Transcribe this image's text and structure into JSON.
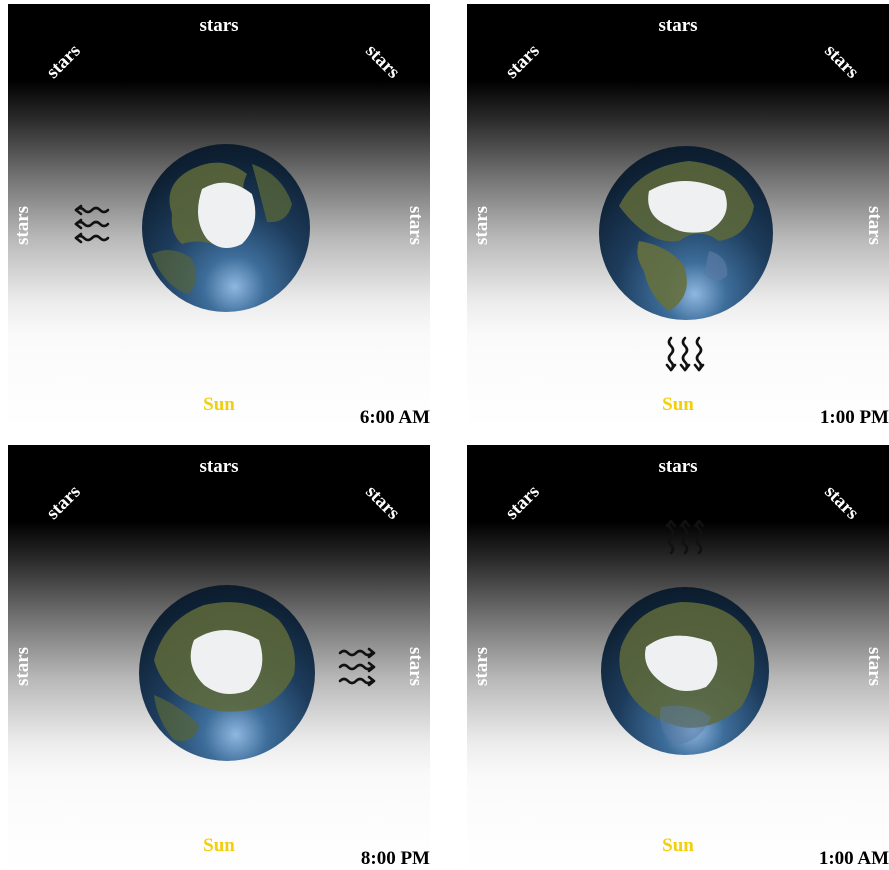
{
  "panels": [
    {
      "time": "6:00 AM",
      "stars": "stars",
      "sun": "Sun",
      "arrow_direction": "up",
      "globe_view": "6am-globe"
    },
    {
      "time": "1:00 PM",
      "stars": "stars",
      "sun": "Sun",
      "arrow_direction": "down",
      "globe_view": "1pm-globe"
    },
    {
      "time": "8:00 PM",
      "stars": "stars",
      "sun": "Sun",
      "arrow_direction": "right",
      "globe_view": "8pm-globe"
    },
    {
      "time": "1:00 AM",
      "stars": "stars",
      "sun": "Sun",
      "arrow_direction": "up",
      "globe_view": "1am-globe"
    }
  ],
  "colors": {
    "sun_label": "#f2cf0a",
    "stars_label": "#ffffff",
    "time_label": "#000000",
    "ocean": "#1d3c5c",
    "land": "#5f6a3a",
    "ice": "#eef0f2"
  }
}
